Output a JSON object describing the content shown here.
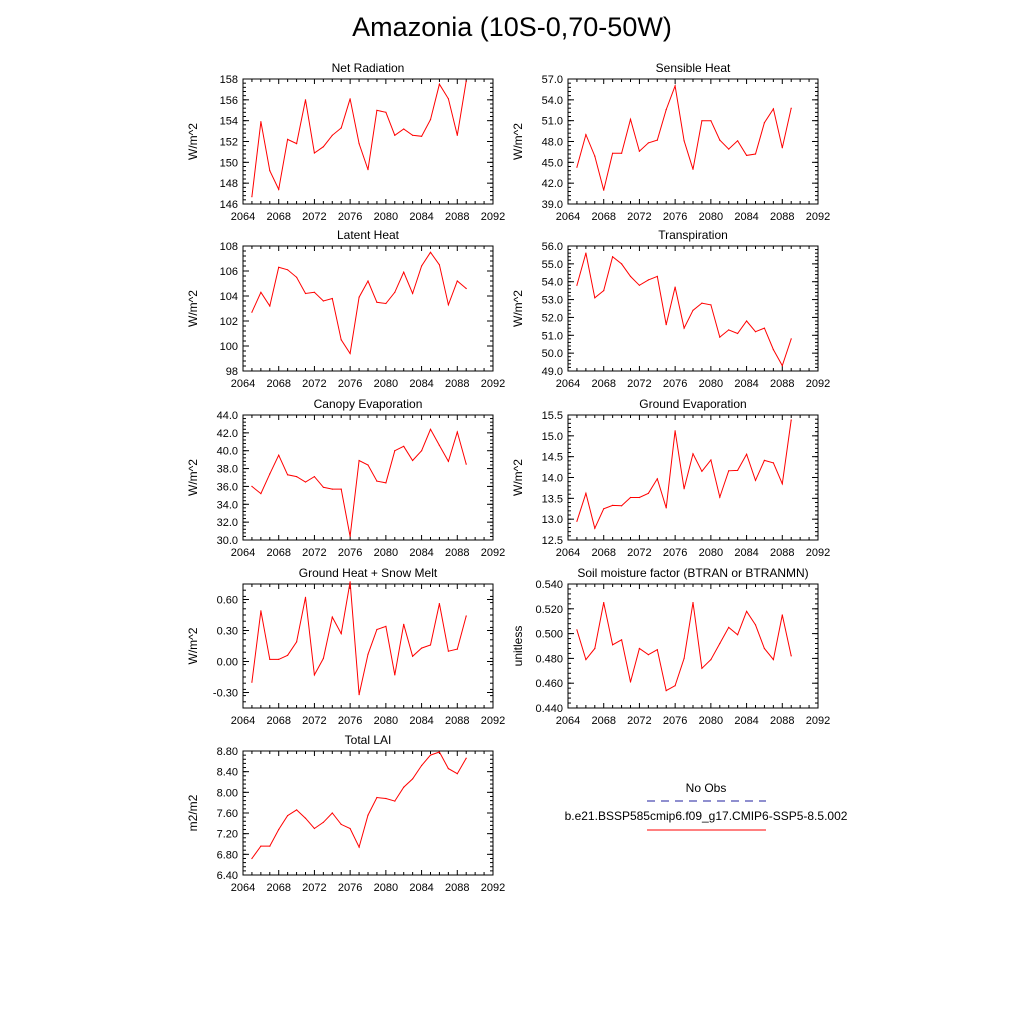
{
  "main_title": "Amazonia (10S-0,70-50W)",
  "colors": {
    "model": "#ff0000",
    "obs": "#1f1f9f",
    "axis": "#000000"
  },
  "legend": {
    "obs_label": "No Obs",
    "model_label": "b.e21.BSSP585cmip6.f09_g17.CMIP6-SSP5-8.5.002"
  },
  "chart_data": [
    {
      "type": "line",
      "title": "Net Radiation",
      "ylabel": "W/m^2",
      "xlim": [
        2064,
        2092
      ],
      "xticks": [
        "2064",
        "2068",
        "2072",
        "2076",
        "2080",
        "2084",
        "2088",
        "2092"
      ],
      "ylim": [
        146,
        158
      ],
      "yticks": [
        "146",
        "148",
        "150",
        "152",
        "154",
        "156",
        "158"
      ],
      "series": [
        {
          "x": [
            2065,
            2066,
            2067,
            2068,
            2069,
            2070,
            2071,
            2072,
            2073,
            2074,
            2075,
            2076,
            2077,
            2078,
            2079,
            2080,
            2081,
            2082,
            2083,
            2084,
            2085,
            2086,
            2087,
            2088,
            2089
          ],
          "values": [
            146.7,
            153.9,
            149.2,
            147.4,
            152.2,
            151.8,
            156.0,
            150.9,
            151.5,
            152.6,
            153.3,
            156.1,
            151.8,
            149.3,
            155.0,
            154.8,
            152.6,
            153.2,
            152.6,
            152.5,
            154.1,
            157.5,
            156.1,
            152.6,
            157.8
          ]
        }
      ]
    },
    {
      "type": "line",
      "title": "Sensible Heat",
      "ylabel": "W/m^2",
      "xlim": [
        2064,
        2092
      ],
      "xticks": [
        "2064",
        "2068",
        "2072",
        "2076",
        "2080",
        "2084",
        "2088",
        "2092"
      ],
      "ylim": [
        39,
        57
      ],
      "yticks": [
        "39.0",
        "42.0",
        "45.0",
        "48.0",
        "51.0",
        "54.0",
        "57.0"
      ],
      "series": [
        {
          "x": [
            2065,
            2066,
            2067,
            2068,
            2069,
            2070,
            2071,
            2072,
            2073,
            2074,
            2075,
            2076,
            2077,
            2078,
            2079,
            2080,
            2081,
            2082,
            2083,
            2084,
            2085,
            2086,
            2087,
            2088,
            2089
          ],
          "values": [
            44.3,
            49.0,
            45.9,
            41.0,
            46.3,
            46.3,
            51.2,
            46.6,
            47.8,
            48.2,
            52.6,
            56.0,
            48.1,
            44.0,
            51.0,
            51.0,
            48.2,
            46.9,
            48.1,
            46.0,
            46.2,
            50.7,
            52.7,
            47.1,
            52.8
          ]
        }
      ]
    },
    {
      "type": "line",
      "title": "Latent Heat",
      "ylabel": "W/m^2",
      "xlim": [
        2064,
        2092
      ],
      "xticks": [
        "2064",
        "2068",
        "2072",
        "2076",
        "2080",
        "2084",
        "2088",
        "2092"
      ],
      "ylim": [
        98,
        108
      ],
      "yticks": [
        "98",
        "100",
        "102",
        "104",
        "106",
        "108"
      ],
      "series": [
        {
          "x": [
            2065,
            2066,
            2067,
            2068,
            2069,
            2070,
            2071,
            2072,
            2073,
            2074,
            2075,
            2076,
            2077,
            2078,
            2079,
            2080,
            2081,
            2082,
            2083,
            2084,
            2085,
            2086,
            2087,
            2088,
            2089
          ],
          "values": [
            102.7,
            104.3,
            103.2,
            106.3,
            106.1,
            105.5,
            104.2,
            104.3,
            103.6,
            103.8,
            100.5,
            99.4,
            103.9,
            105.2,
            103.5,
            103.4,
            104.3,
            105.9,
            104.2,
            106.4,
            107.5,
            106.5,
            103.3,
            105.2,
            104.6
          ]
        }
      ]
    },
    {
      "type": "line",
      "title": "Transpiration",
      "ylabel": "W/m^2",
      "xlim": [
        2064,
        2092
      ],
      "xticks": [
        "2064",
        "2068",
        "2072",
        "2076",
        "2080",
        "2084",
        "2088",
        "2092"
      ],
      "ylim": [
        49,
        56
      ],
      "yticks": [
        "49.0",
        "50.0",
        "51.0",
        "52.0",
        "53.0",
        "54.0",
        "55.0",
        "56.0"
      ],
      "series": [
        {
          "x": [
            2065,
            2066,
            2067,
            2068,
            2069,
            2070,
            2071,
            2072,
            2073,
            2074,
            2075,
            2076,
            2077,
            2078,
            2079,
            2080,
            2081,
            2082,
            2083,
            2084,
            2085,
            2086,
            2087,
            2088,
            2089
          ],
          "values": [
            53.8,
            55.6,
            53.1,
            53.5,
            55.4,
            55.0,
            54.3,
            53.8,
            54.1,
            54.3,
            51.6,
            53.7,
            51.4,
            52.4,
            52.8,
            52.7,
            50.9,
            51.3,
            51.1,
            51.8,
            51.2,
            51.4,
            50.2,
            49.3,
            50.8
          ]
        }
      ]
    },
    {
      "type": "line",
      "title": "Canopy Evaporation",
      "ylabel": "W/m^2",
      "xlim": [
        2064,
        2092
      ],
      "xticks": [
        "2064",
        "2068",
        "2072",
        "2076",
        "2080",
        "2084",
        "2088",
        "2092"
      ],
      "ylim": [
        30,
        44
      ],
      "yticks": [
        "30.0",
        "32.0",
        "34.0",
        "36.0",
        "38.0",
        "40.0",
        "42.0",
        "44.0"
      ],
      "series": [
        {
          "x": [
            2065,
            2066,
            2067,
            2068,
            2069,
            2070,
            2071,
            2072,
            2073,
            2074,
            2075,
            2076,
            2077,
            2078,
            2079,
            2080,
            2081,
            2082,
            2083,
            2084,
            2085,
            2086,
            2087,
            2088,
            2089
          ],
          "values": [
            36.0,
            35.2,
            37.4,
            39.5,
            37.3,
            37.1,
            36.5,
            37.1,
            35.9,
            35.7,
            35.7,
            30.4,
            38.9,
            38.4,
            36.6,
            36.4,
            40.0,
            40.5,
            38.9,
            40.0,
            42.4,
            40.6,
            38.8,
            42.1,
            38.5
          ]
        }
      ]
    },
    {
      "type": "line",
      "title": "Ground Evaporation",
      "ylabel": "W/m^2",
      "xlim": [
        2064,
        2092
      ],
      "xticks": [
        "2064",
        "2068",
        "2072",
        "2076",
        "2080",
        "2084",
        "2088",
        "2092"
      ],
      "ylim": [
        12.5,
        15.5
      ],
      "yticks": [
        "12.5",
        "13.0",
        "13.5",
        "14.0",
        "14.5",
        "15.0",
        "15.5"
      ],
      "series": [
        {
          "x": [
            2065,
            2066,
            2067,
            2068,
            2069,
            2070,
            2071,
            2072,
            2073,
            2074,
            2075,
            2076,
            2077,
            2078,
            2079,
            2080,
            2081,
            2082,
            2083,
            2084,
            2085,
            2086,
            2087,
            2088,
            2089
          ],
          "values": [
            12.95,
            13.62,
            12.78,
            13.25,
            13.33,
            13.32,
            13.52,
            13.52,
            13.62,
            13.97,
            13.27,
            15.12,
            13.73,
            14.57,
            14.15,
            14.42,
            13.53,
            14.16,
            14.17,
            14.56,
            13.93,
            14.41,
            14.35,
            13.85,
            15.38
          ]
        }
      ]
    },
    {
      "type": "line",
      "title": "Ground Heat + Snow Melt",
      "ylabel": "W/m^2",
      "xlim": [
        2064,
        2092
      ],
      "xticks": [
        "2064",
        "2068",
        "2072",
        "2076",
        "2080",
        "2084",
        "2088",
        "2092"
      ],
      "ylim": [
        -0.45,
        0.75
      ],
      "yticks": [
        "-0.30",
        "0.00",
        "0.30",
        "0.60"
      ],
      "ytick_values": [
        -0.3,
        0.0,
        0.3,
        0.6
      ],
      "series": [
        {
          "x": [
            2065,
            2066,
            2067,
            2068,
            2069,
            2070,
            2071,
            2072,
            2073,
            2074,
            2075,
            2076,
            2077,
            2078,
            2079,
            2080,
            2081,
            2082,
            2083,
            2084,
            2085,
            2086,
            2087,
            2088,
            2089
          ],
          "values": [
            -0.2,
            0.49,
            0.02,
            0.02,
            0.06,
            0.19,
            0.62,
            -0.13,
            0.03,
            0.43,
            0.27,
            0.77,
            -0.32,
            0.07,
            0.31,
            0.34,
            -0.13,
            0.36,
            0.05,
            0.13,
            0.16,
            0.56,
            0.1,
            0.12,
            0.44
          ]
        }
      ]
    },
    {
      "type": "line",
      "title": "Soil moisture factor (BTRAN or BTRANMN)",
      "ylabel": "unitless",
      "xlim": [
        2064,
        2092
      ],
      "xticks": [
        "2064",
        "2068",
        "2072",
        "2076",
        "2080",
        "2084",
        "2088",
        "2092"
      ],
      "ylim": [
        0.44,
        0.54
      ],
      "yticks": [
        "0.440",
        "0.460",
        "0.480",
        "0.500",
        "0.520",
        "0.540"
      ],
      "series": [
        {
          "x": [
            2065,
            2066,
            2067,
            2068,
            2069,
            2070,
            2071,
            2072,
            2073,
            2074,
            2075,
            2076,
            2077,
            2078,
            2079,
            2080,
            2081,
            2082,
            2083,
            2084,
            2085,
            2086,
            2087,
            2088,
            2089
          ],
          "values": [
            0.503,
            0.479,
            0.488,
            0.525,
            0.491,
            0.495,
            0.461,
            0.488,
            0.483,
            0.487,
            0.454,
            0.458,
            0.48,
            0.525,
            0.472,
            0.479,
            0.492,
            0.505,
            0.499,
            0.518,
            0.507,
            0.488,
            0.479,
            0.515,
            0.482
          ]
        }
      ]
    },
    {
      "type": "line",
      "title": "Total LAI",
      "ylabel": "m2/m2",
      "xlim": [
        2064,
        2092
      ],
      "xticks": [
        "2064",
        "2068",
        "2072",
        "2076",
        "2080",
        "2084",
        "2088",
        "2092"
      ],
      "ylim": [
        6.4,
        8.8
      ],
      "yticks": [
        "6.40",
        "6.80",
        "7.20",
        "7.60",
        "8.00",
        "8.40",
        "8.80"
      ],
      "series": [
        {
          "x": [
            2065,
            2066,
            2067,
            2068,
            2069,
            2070,
            2071,
            2072,
            2073,
            2074,
            2075,
            2076,
            2077,
            2078,
            2079,
            2080,
            2081,
            2082,
            2083,
            2084,
            2085,
            2086,
            2087,
            2088,
            2089
          ],
          "values": [
            6.72,
            6.96,
            6.96,
            7.28,
            7.55,
            7.66,
            7.5,
            7.3,
            7.42,
            7.6,
            7.38,
            7.3,
            6.94,
            7.56,
            7.9,
            7.88,
            7.83,
            8.1,
            8.26,
            8.52,
            8.72,
            8.78,
            8.46,
            8.36,
            8.66
          ]
        }
      ]
    }
  ]
}
